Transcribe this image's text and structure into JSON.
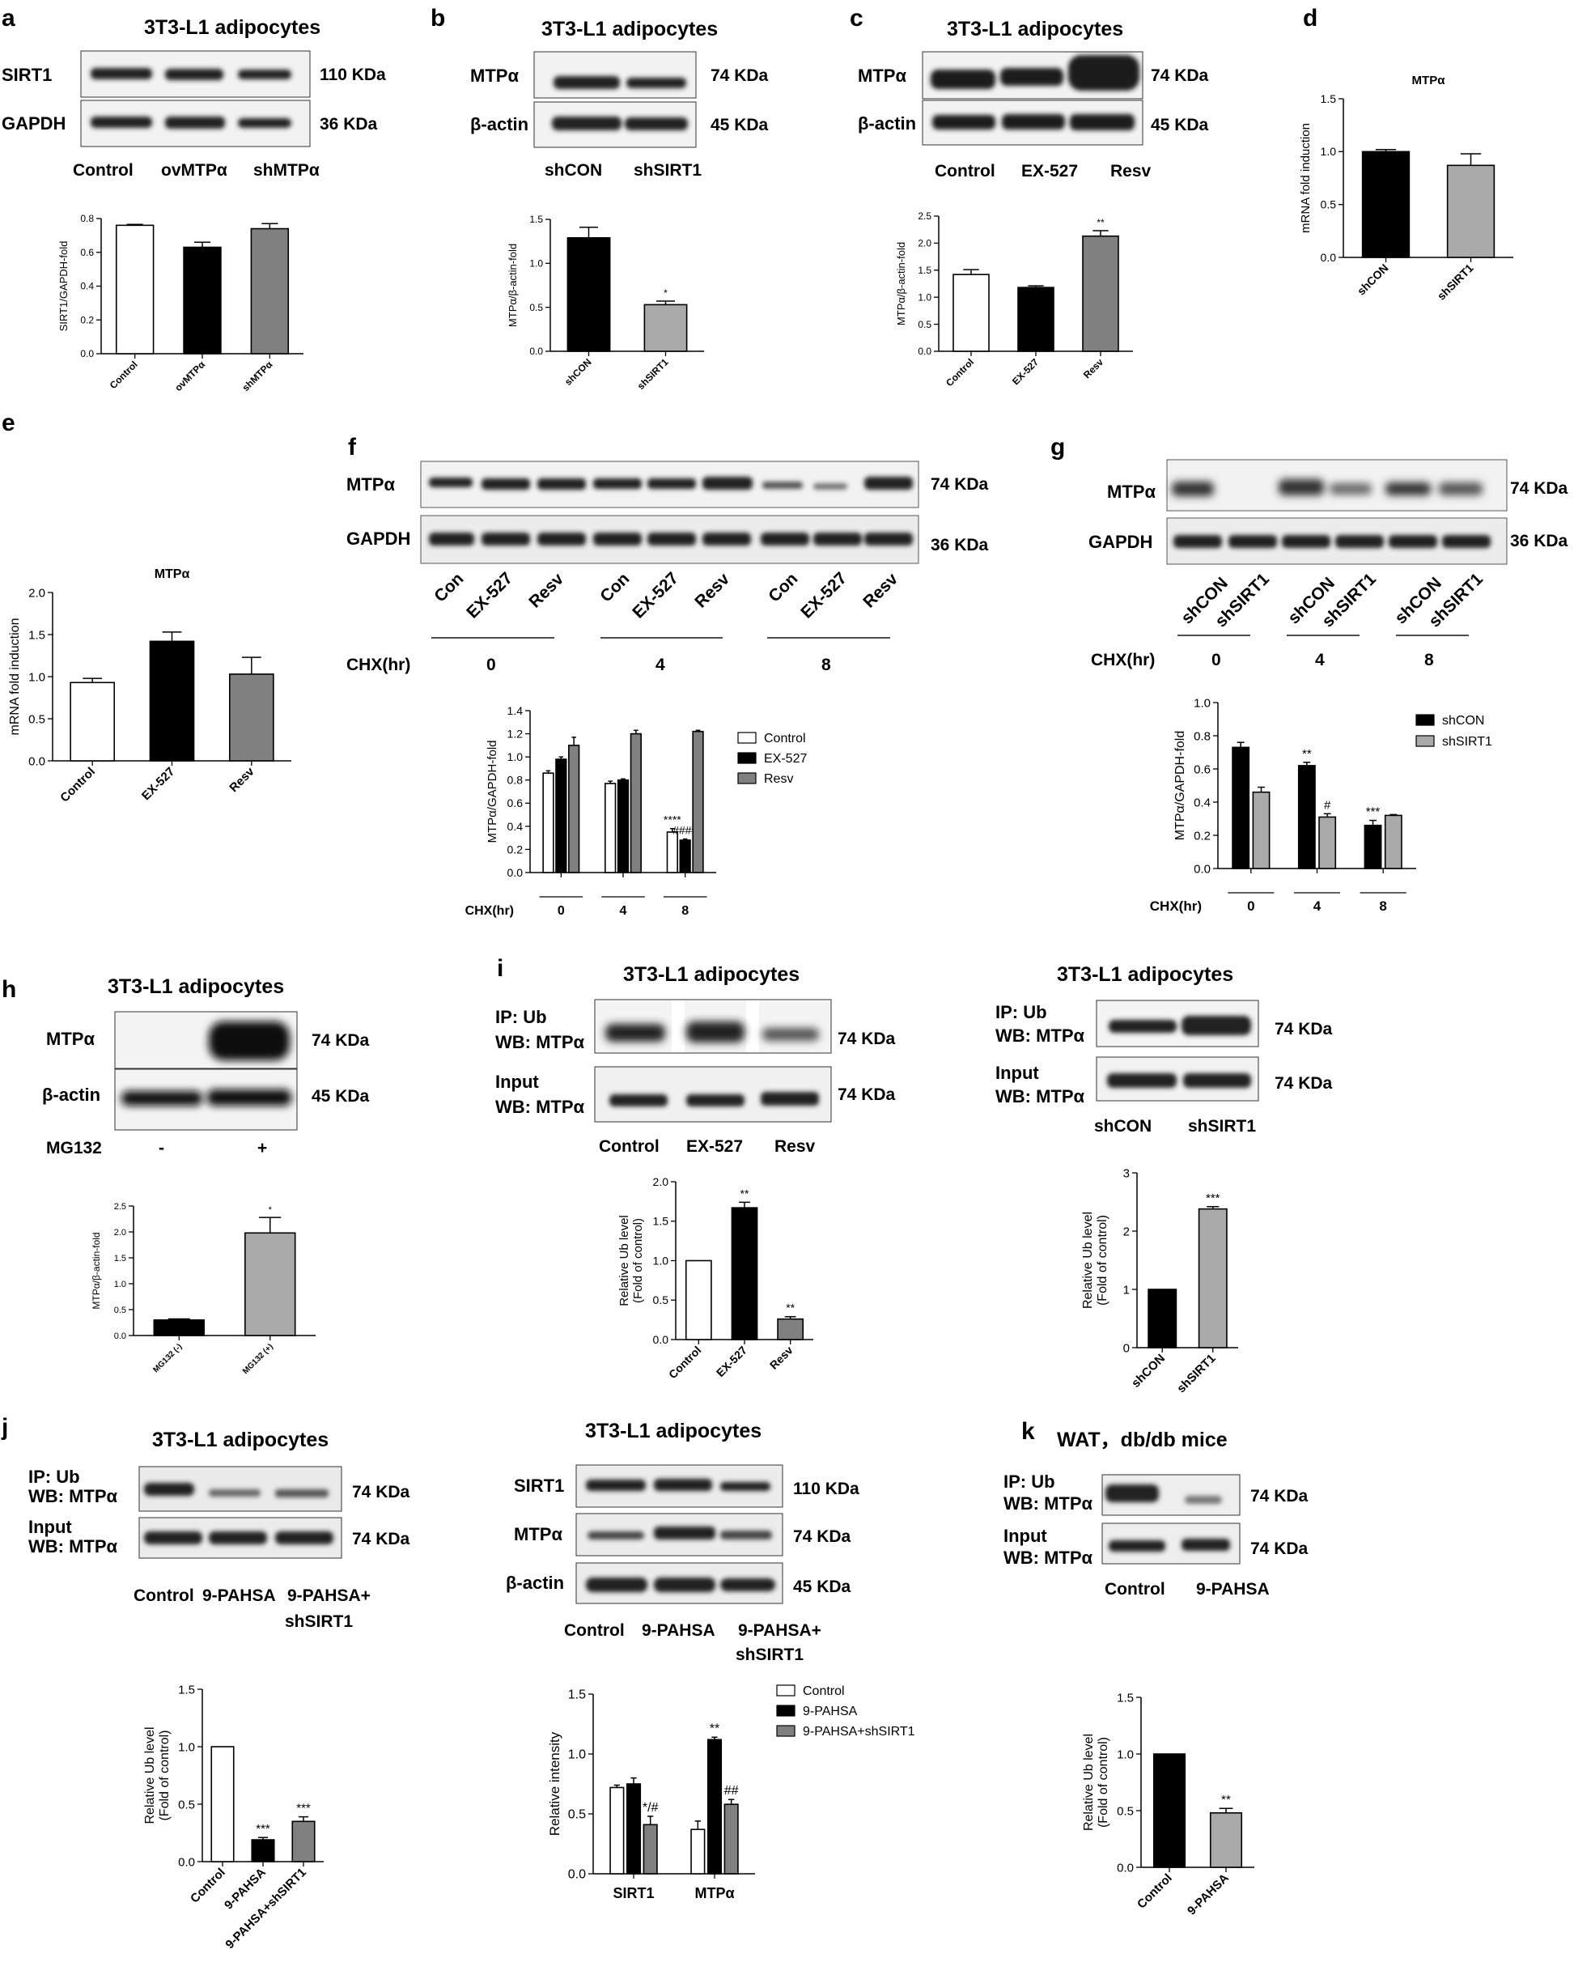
{
  "panels": {
    "a": {
      "letter": "a",
      "title": "3T3-L1 adipocytes",
      "blots": [
        {
          "label": "SIRT1",
          "size": "110 KDa"
        },
        {
          "label": "GAPDH",
          "size": "36 KDa"
        }
      ],
      "conditions": [
        "Control",
        "ovMTPα",
        "shMTPα"
      ],
      "ylabel": "SIRT1/GAPDH-fold"
    },
    "b": {
      "letter": "b",
      "title": "3T3-L1 adipocytes",
      "blots": [
        {
          "label": "MTPα",
          "size": "74 KDa"
        },
        {
          "label": "β-actin",
          "size": "45 KDa"
        }
      ],
      "conditions": [
        "shCON",
        "shSIRT1"
      ],
      "ylabel": "MTPα/β-actin-fold"
    },
    "c": {
      "letter": "c",
      "title": "3T3-L1 adipocytes",
      "blots": [
        {
          "label": "MTPα",
          "size": "74 KDa"
        },
        {
          "label": "β-actin",
          "size": "45 KDa"
        }
      ],
      "conditions": [
        "Control",
        "EX-527",
        "Resv"
      ],
      "ylabel": "MTPα/β-actin-fold"
    },
    "d": {
      "letter": "d"
    },
    "e": {
      "letter": "e"
    },
    "f": {
      "letter": "f",
      "blots": [
        {
          "label": "MTPα",
          "size": "74 KDa"
        },
        {
          "label": "GAPDH",
          "size": "36 KDa"
        }
      ],
      "lanes": [
        "Con",
        "EX-527",
        "Resv",
        "Con",
        "EX-527",
        "Resv",
        "Con",
        "EX-527",
        "Resv"
      ],
      "chx_label": "CHX(hr)",
      "chx_values": [
        "0",
        "4",
        "8"
      ]
    },
    "g": {
      "letter": "g",
      "blots": [
        {
          "label": "MTPα",
          "size": "74 KDa"
        },
        {
          "label": "GAPDH",
          "size": "36 KDa"
        }
      ],
      "lanes": [
        "shCON",
        "shSIRT1",
        "shCON",
        "shSIRT1",
        "shCON",
        "shSIRT1"
      ],
      "chx_label": "CHX(hr)",
      "chx_values": [
        "0",
        "4",
        "8"
      ]
    },
    "h": {
      "letter": "h",
      "title": "3T3-L1 adipocytes",
      "blots": [
        {
          "label": "MTPα",
          "size": "74 KDa"
        },
        {
          "label": "β-actin",
          "size": "45 KDa"
        }
      ],
      "treat_label": "MG132",
      "treat_values": [
        "-",
        "+"
      ]
    },
    "i": {
      "letter": "i",
      "left": {
        "title": "3T3-L1 adipocytes",
        "blots": [
          {
            "label": "IP: Ub",
            "label2": "WB: MTPα",
            "size": "74 KDa"
          },
          {
            "label": "Input",
            "label2": "WB: MTPα",
            "size": "74 KDa"
          }
        ],
        "conditions": [
          "Control",
          "EX-527",
          "Resv"
        ]
      },
      "right": {
        "title": "3T3-L1 adipocytes",
        "blots": [
          {
            "label": "IP: Ub",
            "label2": "WB: MTPα",
            "size": "74 KDa"
          },
          {
            "label": "Input",
            "label2": "WB: MTPα",
            "size": "74 KDa"
          }
        ],
        "conditions": [
          "shCON",
          "shSIRT1"
        ]
      }
    },
    "j": {
      "letter": "j",
      "left": {
        "title": "3T3-L1 adipocytes",
        "blots": [
          {
            "label": "IP: Ub",
            "label2": "WB: MTPα",
            "size": "74 KDa"
          },
          {
            "label": "Input",
            "label2": "WB: MTPα",
            "size": "74 KDa"
          }
        ],
        "conditions": [
          "Control",
          "9-PAHSA",
          "9-PAHSA+",
          "shSIRT1"
        ]
      },
      "right": {
        "title": "3T3-L1 adipocytes",
        "blots": [
          {
            "label": "SIRT1",
            "size": "110 KDa"
          },
          {
            "label": "MTPα",
            "size": "74 KDa"
          },
          {
            "label": "β-actin",
            "size": "45 KDa"
          }
        ],
        "conditions": [
          "Control",
          "9-PAHSA",
          "9-PAHSA+",
          "shSIRT1"
        ]
      }
    },
    "k": {
      "letter": "k",
      "title": "WAT，db/db mice",
      "blots": [
        {
          "label": "IP: Ub",
          "label2": "WB: MTPα",
          "size": "74 KDa"
        },
        {
          "label": "Input",
          "label2": "WB: MTPα",
          "size": "74 KDa"
        }
      ],
      "conditions": [
        "Control",
        "9-PAHSA"
      ]
    }
  },
  "chart_data": [
    {
      "id": "a",
      "type": "bar",
      "categories": [
        "Control",
        "ovMTPα",
        "shMTPα"
      ],
      "values": [
        0.76,
        0.63,
        0.74
      ],
      "errors": [
        0.005,
        0.03,
        0.03
      ],
      "fills": [
        "#ffffff",
        "#000000",
        "#808080"
      ],
      "ylabel": "SIRT1/GAPDH-fold",
      "ylim": [
        0,
        0.8
      ],
      "ticks": [
        "0.0",
        "0.2",
        "0.4",
        "0.6",
        "0.8"
      ],
      "sig": [
        "",
        "",
        ""
      ]
    },
    {
      "id": "b",
      "type": "bar",
      "categories": [
        "shCON",
        "shSIRT1"
      ],
      "values": [
        1.29,
        0.53
      ],
      "errors": [
        0.12,
        0.04
      ],
      "fills": [
        "#000000",
        "#aaaaaa"
      ],
      "ylabel": "MTPα/β-actin-fold",
      "ylim": [
        0,
        1.5
      ],
      "ticks": [
        "0.0",
        "0.5",
        "1.0",
        "1.5"
      ],
      "sig": [
        "",
        "*"
      ]
    },
    {
      "id": "c",
      "type": "bar",
      "categories": [
        "Control",
        "EX-527",
        "Resv"
      ],
      "values": [
        1.42,
        1.18,
        2.13
      ],
      "errors": [
        0.09,
        0.03,
        0.1
      ],
      "fills": [
        "#ffffff",
        "#000000",
        "#808080"
      ],
      "ylabel": "MTPα/β-actin-fold",
      "ylim": [
        0,
        2.5
      ],
      "ticks": [
        "0.0",
        "0.5",
        "1.0",
        "1.5",
        "2.0",
        "2.5"
      ],
      "sig": [
        "",
        "",
        "**"
      ]
    },
    {
      "id": "d",
      "type": "bar",
      "title": "MTPα",
      "categories": [
        "shCON",
        "shSIRT1"
      ],
      "values": [
        1.0,
        0.87
      ],
      "errors": [
        0.02,
        0.11
      ],
      "fills": [
        "#000000",
        "#aaaaaa"
      ],
      "ylabel": "mRNA fold induction",
      "ylim": [
        0,
        1.5
      ],
      "ticks": [
        "0.0",
        "0.5",
        "1.0",
        "1.5"
      ],
      "sig": [
        "",
        ""
      ]
    },
    {
      "id": "e",
      "type": "bar",
      "title": "MTPα",
      "categories": [
        "Control",
        "EX-527",
        "Resv"
      ],
      "values": [
        0.93,
        1.42,
        1.03
      ],
      "errors": [
        0.05,
        0.11,
        0.2
      ],
      "fills": [
        "#ffffff",
        "#000000",
        "#808080"
      ],
      "ylabel": "mRNA fold induction",
      "ylim": [
        0,
        2.0
      ],
      "ticks": [
        "0.0",
        "0.5",
        "1.0",
        "1.5",
        "2.0"
      ],
      "sig": [
        "",
        "",
        ""
      ]
    },
    {
      "id": "f",
      "type": "bar",
      "categories": [
        "0",
        "4",
        "8"
      ],
      "xlabel": "CHX(hr)",
      "ylabel": "MTPα/GAPDH-fold",
      "ylim": [
        0,
        1.4
      ],
      "ticks": [
        "0.0",
        "0.2",
        "0.4",
        "0.6",
        "0.8",
        "1.0",
        "1.2",
        "1.4"
      ],
      "series": [
        {
          "name": "Control",
          "fill": "#ffffff",
          "values": [
            0.86,
            0.77,
            0.35
          ],
          "errors": [
            0.02,
            0.02,
            0.03
          ],
          "sig": [
            "",
            "",
            "****"
          ]
        },
        {
          "name": "EX-527",
          "fill": "#000000",
          "values": [
            0.98,
            0.8,
            0.28
          ],
          "errors": [
            0.02,
            0.01,
            0.01
          ],
          "sig": [
            "",
            "",
            "####"
          ]
        },
        {
          "name": "Resv",
          "fill": "#808080",
          "values": [
            1.1,
            1.2,
            1.22
          ],
          "errors": [
            0.07,
            0.03,
            0.01
          ],
          "sig": [
            "",
            "",
            ""
          ]
        }
      ]
    },
    {
      "id": "g",
      "type": "bar",
      "categories": [
        "0",
        "4",
        "8"
      ],
      "xlabel": "CHX(hr)",
      "ylabel": "MTPα/GAPDH-fold",
      "ylim": [
        0,
        1.0
      ],
      "ticks": [
        "0.0",
        "0.2",
        "0.4",
        "0.6",
        "0.8",
        "1.0"
      ],
      "series": [
        {
          "name": "shCON",
          "fill": "#000000",
          "values": [
            0.73,
            0.62,
            0.26
          ],
          "errors": [
            0.03,
            0.02,
            0.03
          ],
          "sig": [
            "",
            "**",
            "***"
          ]
        },
        {
          "name": "shSIRT1",
          "fill": "#aaaaaa",
          "values": [
            0.46,
            0.31,
            0.32
          ],
          "errors": [
            0.03,
            0.02,
            0.005
          ],
          "sig": [
            "",
            "#",
            ""
          ]
        }
      ]
    },
    {
      "id": "h",
      "type": "bar",
      "categories": [
        "MG132 (-)",
        "MG132 (+)"
      ],
      "values": [
        0.3,
        1.98
      ],
      "errors": [
        0.02,
        0.3
      ],
      "fills": [
        "#000000",
        "#aaaaaa"
      ],
      "ylabel": "MTPα/β-actin-fold",
      "ylim": [
        0,
        2.5
      ],
      "ticks": [
        "0.0",
        "0.5",
        "1.0",
        "1.5",
        "2.0",
        "2.5"
      ],
      "sig": [
        "",
        "*"
      ]
    },
    {
      "id": "i1",
      "type": "bar",
      "categories": [
        "Control",
        "EX-527",
        "Resv"
      ],
      "values": [
        1.0,
        1.67,
        0.26
      ],
      "errors": [
        0,
        0.07,
        0.03
      ],
      "fills": [
        "#ffffff",
        "#000000",
        "#808080"
      ],
      "ylabel": "Relative Ub level\n(Fold of control)",
      "ylim": [
        0,
        2.0
      ],
      "ticks": [
        "0.0",
        "0.5",
        "1.0",
        "1.5",
        "2.0"
      ],
      "sig": [
        "",
        "**",
        "**"
      ]
    },
    {
      "id": "i2",
      "type": "bar",
      "categories": [
        "shCON",
        "shSIRT1"
      ],
      "values": [
        1.0,
        2.38
      ],
      "errors": [
        0,
        0.04
      ],
      "fills": [
        "#000000",
        "#aaaaaa"
      ],
      "ylabel": "Relative Ub level\n(Fold of control)",
      "ylim": [
        0,
        3
      ],
      "ticks": [
        "0",
        "1",
        "2",
        "3"
      ],
      "sig": [
        "",
        "***"
      ]
    },
    {
      "id": "j1",
      "type": "bar",
      "categories": [
        "Control",
        "9-PAHSA",
        "9-PAHSA+shSIRT1"
      ],
      "values": [
        1.0,
        0.19,
        0.35
      ],
      "errors": [
        0,
        0.02,
        0.04
      ],
      "fills": [
        "#ffffff",
        "#000000",
        "#808080"
      ],
      "ylabel": "Relative Ub level\n(Fold of control)",
      "ylim": [
        0,
        1.5
      ],
      "ticks": [
        "0.0",
        "0.5",
        "1.0",
        "1.5"
      ],
      "sig": [
        "",
        "***",
        "***"
      ]
    },
    {
      "id": "j2",
      "type": "bar",
      "categories": [
        "SIRT1",
        "MTPα"
      ],
      "ylabel": "Relative intensity",
      "ylim": [
        0,
        1.5
      ],
      "ticks": [
        "0.0",
        "0.5",
        "1.0",
        "1.5"
      ],
      "series": [
        {
          "name": "Control",
          "fill": "#ffffff",
          "values": [
            0.72,
            0.37
          ],
          "errors": [
            0.02,
            0.07
          ],
          "sig": [
            "",
            ""
          ]
        },
        {
          "name": "9-PAHSA",
          "fill": "#000000",
          "values": [
            0.75,
            1.12
          ],
          "errors": [
            0.05,
            0.02
          ],
          "sig": [
            "",
            "**"
          ]
        },
        {
          "name": "9-PAHSA+shSIRT1",
          "fill": "#808080",
          "values": [
            0.41,
            0.58
          ],
          "errors": [
            0.07,
            0.04
          ],
          "sig": [
            "*/#",
            "##"
          ]
        }
      ]
    },
    {
      "id": "k",
      "type": "bar",
      "categories": [
        "Control",
        "9-PAHSA"
      ],
      "values": [
        1.0,
        0.48
      ],
      "errors": [
        0,
        0.04
      ],
      "fills": [
        "#000000",
        "#aaaaaa"
      ],
      "ylabel": "Relative Ub level\n(Fold of control)",
      "ylim": [
        0,
        1.5
      ],
      "ticks": [
        "0.0",
        "0.5",
        "1.0",
        "1.5"
      ],
      "sig": [
        "",
        "**"
      ]
    }
  ]
}
